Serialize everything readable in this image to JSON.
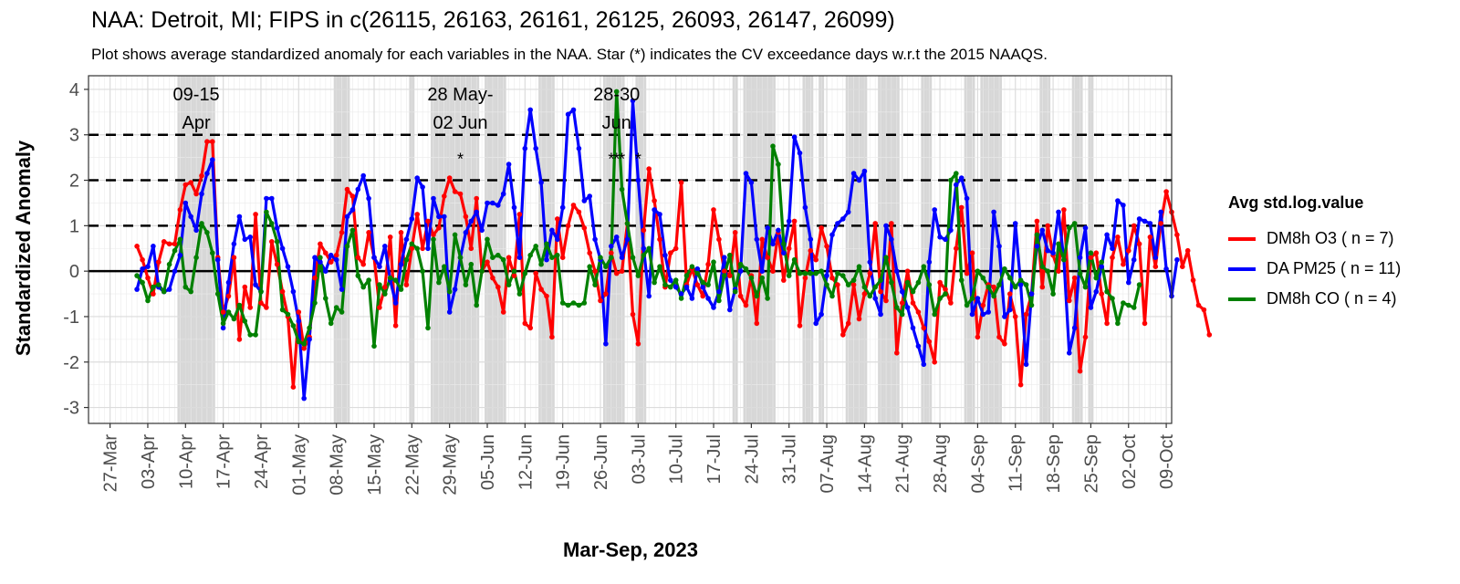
{
  "chart_data": {
    "type": "line",
    "title": "NAA: Detroit, MI; FIPS in c(26115, 26163, 26161, 26125, 26093, 26147, 26099)",
    "subtitle": "Plot shows average standardized anomaly for each variables in the NAA. Star (*) indicates the CV exceedance days w.r.t the 2015 NAAQS.",
    "xlabel": "Mar-Sep, 2023",
    "ylabel": "Standardized Anomaly",
    "x_range": [
      "2023-03-23",
      "2023-10-10"
    ],
    "ylim": [
      -3.35,
      4.3
    ],
    "y_ticks": [
      -3,
      -2,
      -1,
      0,
      1,
      2,
      3,
      4
    ],
    "x_ticks": [
      {
        "date": "2023-03-27",
        "label": "27-Mar"
      },
      {
        "date": "2023-04-03",
        "label": "03-Apr"
      },
      {
        "date": "2023-04-10",
        "label": "10-Apr"
      },
      {
        "date": "2023-04-17",
        "label": "17-Apr"
      },
      {
        "date": "2023-04-24",
        "label": "24-Apr"
      },
      {
        "date": "2023-05-01",
        "label": "01-May"
      },
      {
        "date": "2023-05-08",
        "label": "08-May"
      },
      {
        "date": "2023-05-15",
        "label": "15-May"
      },
      {
        "date": "2023-05-22",
        "label": "22-May"
      },
      {
        "date": "2023-05-29",
        "label": "29-May"
      },
      {
        "date": "2023-06-05",
        "label": "05-Jun"
      },
      {
        "date": "2023-06-12",
        "label": "12-Jun"
      },
      {
        "date": "2023-06-19",
        "label": "19-Jun"
      },
      {
        "date": "2023-06-26",
        "label": "26-Jun"
      },
      {
        "date": "2023-07-03",
        "label": "03-Jul"
      },
      {
        "date": "2023-07-10",
        "label": "10-Jul"
      },
      {
        "date": "2023-07-17",
        "label": "17-Jul"
      },
      {
        "date": "2023-07-24",
        "label": "24-Jul"
      },
      {
        "date": "2023-07-31",
        "label": "31-Jul"
      },
      {
        "date": "2023-08-07",
        "label": "07-Aug"
      },
      {
        "date": "2023-08-14",
        "label": "14-Aug"
      },
      {
        "date": "2023-08-21",
        "label": "21-Aug"
      },
      {
        "date": "2023-08-28",
        "label": "28-Aug"
      },
      {
        "date": "2023-09-04",
        "label": "04-Sep"
      },
      {
        "date": "2023-09-11",
        "label": "11-Sep"
      },
      {
        "date": "2023-09-18",
        "label": "18-Sep"
      },
      {
        "date": "2023-09-25",
        "label": "25-Sep"
      },
      {
        "date": "2023-10-02",
        "label": "02-Oct"
      },
      {
        "date": "2023-10-09",
        "label": "09-Oct"
      }
    ],
    "x_start": "2023-04-01",
    "reference_lines": {
      "dashed": [
        1,
        2,
        3
      ],
      "solid": [
        0
      ]
    },
    "grid": true,
    "shaded_days": [
      "2023-04-09",
      "2023-04-10",
      "2023-04-11",
      "2023-04-12",
      "2023-04-13",
      "2023-04-14",
      "2023-04-15",
      "2023-05-08",
      "2023-05-09",
      "2023-05-10",
      "2023-05-22",
      "2023-05-26",
      "2023-05-27",
      "2023-05-28",
      "2023-05-29",
      "2023-05-30",
      "2023-05-31",
      "2023-06-01",
      "2023-06-02",
      "2023-06-03",
      "2023-06-05",
      "2023-06-06",
      "2023-06-07",
      "2023-06-08",
      "2023-06-15",
      "2023-06-16",
      "2023-06-17",
      "2023-06-27",
      "2023-06-28",
      "2023-06-29",
      "2023-06-30",
      "2023-07-03",
      "2023-07-04",
      "2023-07-21",
      "2023-07-23",
      "2023-07-24",
      "2023-07-25",
      "2023-07-26",
      "2023-07-27",
      "2023-07-28",
      "2023-08-03",
      "2023-08-04",
      "2023-08-06",
      "2023-08-11",
      "2023-08-12",
      "2023-08-13",
      "2023-08-14",
      "2023-08-17",
      "2023-08-18",
      "2023-08-19",
      "2023-08-20",
      "2023-08-25",
      "2023-08-26",
      "2023-09-02",
      "2023-09-03",
      "2023-09-05",
      "2023-09-06",
      "2023-09-07",
      "2023-09-08",
      "2023-09-16",
      "2023-09-17",
      "2023-09-22",
      "2023-09-23",
      "2023-09-25"
    ],
    "annotations": [
      {
        "lines": [
          "09-15",
          "Apr"
        ],
        "x": "2023-04-12",
        "y": 3.9,
        "line_step": 0.62
      },
      {
        "lines": [
          "28 May-",
          "02 Jun"
        ],
        "x": "2023-05-31",
        "y": 3.9,
        "line_step": 0.62
      },
      {
        "lines": [
          "28-30",
          "Jun"
        ],
        "x": "2023-06-29",
        "y": 3.9,
        "line_step": 0.62
      }
    ],
    "stars": [
      {
        "x": "2023-05-31",
        "y": 2.5,
        "text": "*"
      },
      {
        "x": "2023-06-28",
        "y": 2.5,
        "text": "*"
      },
      {
        "x": "2023-06-29",
        "y": 2.5,
        "text": "*"
      },
      {
        "x": "2023-06-30",
        "y": 2.5,
        "text": "*"
      },
      {
        "x": "2023-07-03",
        "y": 2.5,
        "text": "*"
      }
    ],
    "legend_title": "Avg std.log.value",
    "legend_position": "right",
    "series": [
      {
        "name": "DM8h O3 ( n = 7)",
        "color": "#ff0000",
        "values": [
          0.55,
          0.25,
          -0.15,
          -0.5,
          0.2,
          0.65,
          0.6,
          0.6,
          1.35,
          1.9,
          1.95,
          1.7,
          2.1,
          2.85,
          2.85,
          0.3,
          -0.9,
          -0.55,
          0.3,
          -1.5,
          -0.35,
          -0.8,
          1.25,
          -0.7,
          -0.8,
          0.65,
          0.15,
          -0.45,
          -1.0,
          -2.55,
          -0.9,
          -1.7,
          -1.45,
          -0.15,
          0.6,
          0.4,
          0.2,
          0.35,
          0.85,
          1.8,
          1.65,
          0.3,
          0.15,
          0.85,
          0.3,
          -0.8,
          -0.35,
          0.75,
          -1.2,
          0.85,
          -0.3,
          0.5,
          1.25,
          0.5,
          1.1,
          0.8,
          0.95,
          1.65,
          2.05,
          1.75,
          1.7,
          1.2,
          0.5,
          1.6,
          0.0,
          0.2,
          -0.15,
          -0.35,
          -0.9,
          0.3,
          -0.1,
          1.25,
          -1.15,
          -1.25,
          -0.05,
          -0.4,
          -0.55,
          -1.45,
          1.15,
          0.3,
          1.0,
          1.45,
          1.3,
          0.95,
          0.4,
          0.0,
          -0.65,
          -0.5,
          0.4,
          -0.05,
          0.0,
          1.05,
          -0.95,
          -1.6,
          0.9,
          2.25,
          1.55,
          0.7,
          -0.35,
          0.4,
          0.5,
          1.95,
          -0.3,
          0.05,
          -0.3,
          -0.55,
          0.15,
          1.35,
          0.7,
          0.0,
          -0.1,
          0.85,
          -0.55,
          -0.75,
          -0.1,
          -1.15,
          0.7,
          0.3,
          0.0,
          0.85,
          -0.2,
          0.5,
          1.1,
          -1.2,
          -0.15,
          0.45,
          0.25,
          0.95,
          0.55,
          -0.15,
          -0.3,
          -1.4,
          -1.15,
          -0.3,
          -1.05,
          -0.5,
          -0.05,
          1.05,
          -0.45,
          -0.65,
          1.05,
          -1.8,
          -0.7,
          0.0,
          -0.7,
          -0.9,
          -1.25,
          -1.55,
          -2.0,
          -0.25,
          -0.4,
          -0.7,
          0.5,
          1.4,
          -0.05,
          0.4,
          -1.45,
          -0.75,
          -0.3,
          -0.35,
          -1.45,
          -1.6,
          -0.5,
          -1.0,
          -2.5,
          -0.95,
          -0.5,
          1.1,
          -0.35,
          1.0,
          0.35,
          0.0,
          1.35,
          -0.65,
          -0.15,
          -2.2,
          -1.45,
          0.3,
          0.4,
          -0.5,
          -1.15,
          0.3,
          0.75,
          0.15,
          0.45,
          1.0,
          0.6,
          -1.15,
          0.75,
          0.1,
          1.05,
          1.75,
          1.3,
          0.8,
          0.1,
          0.45,
          -0.2,
          -0.75,
          -0.85,
          -1.4
        ]
      },
      {
        "name": "DA PM25 ( n = 11)",
        "color": "#0000ff",
        "values": [
          -0.4,
          0.05,
          0.1,
          0.55,
          -0.35,
          -0.45,
          -0.4,
          0.0,
          0.35,
          1.5,
          1.2,
          0.9,
          1.7,
          2.15,
          2.45,
          0.25,
          -1.25,
          -0.25,
          0.6,
          1.2,
          0.7,
          0.75,
          -0.3,
          -0.45,
          1.6,
          1.6,
          0.95,
          0.5,
          0.1,
          -0.45,
          -1.1,
          -2.8,
          -1.5,
          0.3,
          0.2,
          0.0,
          0.35,
          0.25,
          -0.4,
          1.2,
          1.35,
          1.8,
          2.1,
          1.6,
          0.3,
          0.1,
          0.55,
          -0.2,
          -0.7,
          0.15,
          0.7,
          1.15,
          2.05,
          1.85,
          0.5,
          1.6,
          1.2,
          1.2,
          -0.9,
          -0.4,
          0.3,
          0.85,
          1.1,
          1.3,
          0.9,
          1.5,
          1.5,
          1.45,
          1.7,
          2.35,
          1.4,
          0.3,
          2.7,
          3.55,
          2.7,
          1.95,
          0.25,
          0.9,
          0.7,
          1.4,
          3.45,
          3.55,
          2.7,
          1.55,
          1.65,
          0.7,
          0.25,
          -1.6,
          0.55,
          0.75,
          0.3,
          0.7,
          3.75,
          2.0,
          0.5,
          -0.55,
          1.35,
          1.25,
          0.35,
          -0.2,
          -0.35,
          -0.5,
          -0.35,
          -0.6,
          0.05,
          -0.35,
          -0.6,
          -0.8,
          -0.45,
          0.3,
          -0.85,
          -0.4,
          0.0,
          2.15,
          1.95,
          0.7,
          0.0,
          0.95,
          0.6,
          0.9,
          0.4,
          1.1,
          2.95,
          2.6,
          1.4,
          0.7,
          -1.15,
          -0.95,
          -0.1,
          0.8,
          1.05,
          1.15,
          1.3,
          2.15,
          2.0,
          2.2,
          0.2,
          -0.6,
          -0.95,
          1.0,
          0.7,
          0.0,
          -0.45,
          -0.8,
          -1.25,
          -1.65,
          -2.05,
          0.2,
          1.35,
          0.75,
          0.7,
          0.9,
          1.9,
          2.05,
          1.6,
          -0.95,
          -0.6,
          -0.95,
          -0.9,
          1.3,
          0.55,
          -1.0,
          -0.85,
          1.05,
          -0.3,
          -2.05,
          -0.5,
          0.55,
          0.9,
          0.45,
          0.4,
          1.3,
          0.25,
          -1.8,
          -1.25,
          0.3,
          0.95,
          -0.8,
          -0.45,
          0.1,
          0.8,
          0.5,
          1.55,
          1.45,
          -0.25,
          0.25,
          1.15,
          1.1,
          1.05,
          0.3,
          1.3,
          0.05,
          -0.55,
          0.25
        ]
      },
      {
        "name": "DM8h CO ( n = 4)",
        "color": "#008000",
        "values": [
          -0.1,
          -0.25,
          -0.65,
          -0.35,
          -0.3,
          -0.45,
          0.15,
          0.45,
          0.7,
          -0.35,
          -0.45,
          0.3,
          1.05,
          0.85,
          0.4,
          -0.5,
          -1.15,
          -0.9,
          -1.05,
          -0.75,
          -1.1,
          -1.4,
          -1.4,
          -0.45,
          1.3,
          1.05,
          0.65,
          -0.85,
          -0.95,
          -1.2,
          -1.55,
          -1.6,
          -1.25,
          -0.7,
          0.3,
          -0.6,
          -1.15,
          -0.8,
          -0.9,
          0.55,
          0.9,
          -0.1,
          -0.35,
          -0.2,
          -1.65,
          -0.3,
          -0.5,
          -0.15,
          -0.2,
          -0.4,
          0.25,
          0.6,
          0.5,
          0.0,
          -1.25,
          0.7,
          -0.25,
          0.1,
          -0.45,
          0.8,
          0.3,
          -0.3,
          0.15,
          -0.75,
          0.0,
          0.7,
          0.3,
          0.35,
          0.25,
          -0.3,
          0.0,
          -0.5,
          -0.05,
          0.35,
          0.55,
          0.15,
          0.6,
          0.3,
          0.35,
          -0.7,
          -0.75,
          -0.7,
          -0.75,
          -0.7,
          0.1,
          -0.3,
          0.3,
          0.1,
          0.3,
          3.95,
          1.8,
          1.05,
          0.3,
          -0.1,
          0.35,
          0.5,
          -0.25,
          0.1,
          -0.3,
          -0.35,
          -0.2,
          -0.6,
          -0.1,
          0.1,
          -0.05,
          -0.25,
          -0.3,
          0.2,
          -0.65,
          -0.1,
          0.35,
          -0.45,
          0.15,
          0.05,
          -0.15,
          -0.55,
          -0.15,
          -0.6,
          2.75,
          2.35,
          0.6,
          -0.1,
          0.25,
          -0.05,
          -0.05,
          -0.05,
          -0.05,
          0.0,
          -0.3,
          -0.55,
          -0.05,
          -0.1,
          -0.3,
          -0.2,
          0.1,
          -0.35,
          -0.55,
          -0.35,
          -0.2,
          0.3,
          -0.25,
          -0.8,
          -0.95,
          -0.25,
          -0.45,
          -0.25,
          0.1,
          -0.3,
          -0.95,
          -0.6,
          -0.5,
          2.0,
          2.15,
          -0.2,
          -0.75,
          -0.6,
          0.0,
          -0.15,
          -0.35,
          -0.55,
          -0.3,
          0.05,
          -0.15,
          -0.35,
          -0.2,
          -0.3,
          -0.75,
          0.8,
          0.1,
          0.0,
          -0.5,
          0.6,
          0.25,
          0.95,
          1.05,
          -0.05,
          -0.35,
          0.4,
          -0.15,
          0.2,
          -0.45,
          -0.6,
          -1.15,
          -0.7,
          -0.75,
          -0.8,
          -0.3
        ]
      }
    ]
  }
}
